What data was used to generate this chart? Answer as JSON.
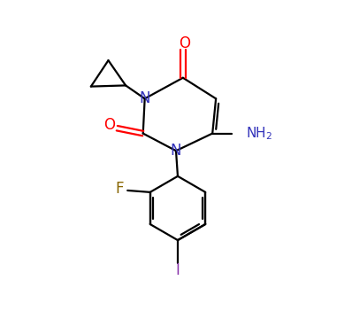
{
  "bg_color": "#ffffff",
  "bond_color": "#000000",
  "N_color": "#3333bb",
  "O_color": "#ff0000",
  "F_color": "#886600",
  "I_color": "#8833aa",
  "lw": 1.6,
  "figsize": [
    3.98,
    3.6
  ],
  "dpi": 100,
  "xlim": [
    0,
    10
  ],
  "ylim": [
    0,
    9
  ]
}
